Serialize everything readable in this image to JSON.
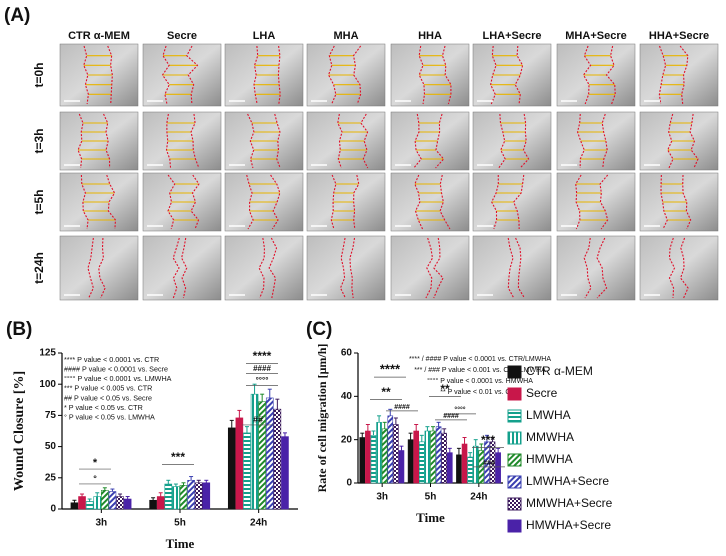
{
  "panel_a": {
    "label": "(A)",
    "columns": [
      "CTR α-MEM",
      "Secre",
      "LHA",
      "MHA",
      "HHA",
      "LHA+Secre",
      "MHA+Secre",
      "HHA+Secre"
    ],
    "rows": [
      "t=0h",
      "t=3h",
      "t=5h",
      "t=24h"
    ]
  },
  "chart_data": [
    {
      "type": "bar",
      "panel_label": "(B)",
      "ylabel": "Wound Closure [%]",
      "xlabel": "Time",
      "categories": [
        "3h",
        "5h",
        "24h"
      ],
      "series": [
        {
          "color": "#111111",
          "pattern": "solid",
          "values": [
            5,
            7,
            65
          ],
          "errors": [
            2,
            2,
            6
          ]
        },
        {
          "color": "#c8174a",
          "pattern": "solid",
          "values": [
            10,
            10,
            73
          ],
          "errors": [
            2,
            3,
            6
          ]
        },
        {
          "color": "#14a08c",
          "pattern": "hstripe",
          "values": [
            6,
            20,
            61
          ],
          "errors": [
            2,
            3,
            5
          ]
        },
        {
          "color": "#14a08c",
          "pattern": "vstripe",
          "values": [
            10,
            18,
            92
          ],
          "errors": [
            3,
            2,
            8
          ]
        },
        {
          "color": "#1f8a2a",
          "pattern": "diag",
          "values": [
            15,
            19,
            86
          ],
          "errors": [
            2,
            2,
            6
          ]
        },
        {
          "color": "#3a3fb0",
          "pattern": "diag",
          "values": [
            14,
            23,
            89
          ],
          "errors": [
            2,
            3,
            7
          ]
        },
        {
          "color": "#3b1a5c",
          "pattern": "check",
          "values": [
            10,
            21,
            80
          ],
          "errors": [
            2,
            2,
            8
          ]
        },
        {
          "color": "#4a22a8",
          "pattern": "solid",
          "values": [
            8,
            21,
            58
          ],
          "errors": [
            2,
            2,
            3
          ]
        }
      ],
      "ylim": [
        0,
        125
      ],
      "yticks": [
        0,
        25,
        50,
        75,
        100,
        125
      ],
      "annotations": [
        "**** P value < 0.0001 vs. CTR",
        "#### P value < 0.0001 vs. Secre",
        "°°°° P value < 0.0001 vs. LMWHA",
        "*** P value < 0.005 vs. CTR",
        "## P value < 0.05 vs. Secre",
        "* P value < 0.05 vs. CTR",
        "° P value < 0.05 vs. LMWHA"
      ],
      "significance": [
        "*",
        "°",
        "***",
        "##",
        "****",
        "####",
        "°°°°"
      ]
    },
    {
      "type": "bar",
      "panel_label": "(C)",
      "ylabel": "Rate of cell migration [μm/h]",
      "xlabel": "Time",
      "categories": [
        "3h",
        "5h",
        "24h"
      ],
      "series": [
        {
          "name": "CTR α-MEM",
          "color": "#111111",
          "pattern": "solid",
          "values": [
            21,
            20,
            13
          ],
          "errors": [
            2,
            3,
            3
          ]
        },
        {
          "name": "Secre",
          "color": "#c8174a",
          "pattern": "solid",
          "values": [
            24,
            24,
            18
          ],
          "errors": [
            3,
            3,
            3
          ]
        },
        {
          "name": "LMWHA",
          "color": "#14a08c",
          "pattern": "hstripe",
          "values": [
            22,
            19,
            12
          ],
          "errors": [
            2,
            3,
            2
          ]
        },
        {
          "name": "MMWHA",
          "color": "#14a08c",
          "pattern": "vstripe",
          "values": [
            28,
            24,
            17
          ],
          "errors": [
            3,
            2,
            3
          ]
        },
        {
          "name": "HMWHA",
          "color": "#1f8a2a",
          "pattern": "diag",
          "values": [
            25,
            24,
            15
          ],
          "errors": [
            3,
            2,
            3
          ]
        },
        {
          "name": "LMWHA+Secre",
          "color": "#3a3fb0",
          "pattern": "diag",
          "values": [
            31,
            26,
            19
          ],
          "errors": [
            3,
            2,
            3
          ]
        },
        {
          "name": "MMWHA+Secre",
          "color": "#3b1a5c",
          "pattern": "check",
          "values": [
            27,
            23,
            19
          ],
          "errors": [
            3,
            2,
            2
          ]
        },
        {
          "name": "HMWHA+Secre",
          "color": "#4a22a8",
          "pattern": "solid",
          "values": [
            15,
            14,
            14
          ],
          "errors": [
            2,
            2,
            2
          ]
        }
      ],
      "ylim": [
        0,
        60
      ],
      "yticks": [
        0,
        20,
        40,
        60
      ],
      "annotations": [
        "**** / #### P value < 0.0001 vs. CTR/LMWHA",
        "*** / ### P value < 0.001 vs. CTR/LMWHA",
        "°°°° P value < 0.0001 vs. HMWHA",
        "** P value < 0.01 vs. CTR"
      ],
      "significance": [
        "****",
        "**",
        "####",
        "**",
        "####",
        "°°°°",
        "***",
        "###"
      ]
    }
  ]
}
